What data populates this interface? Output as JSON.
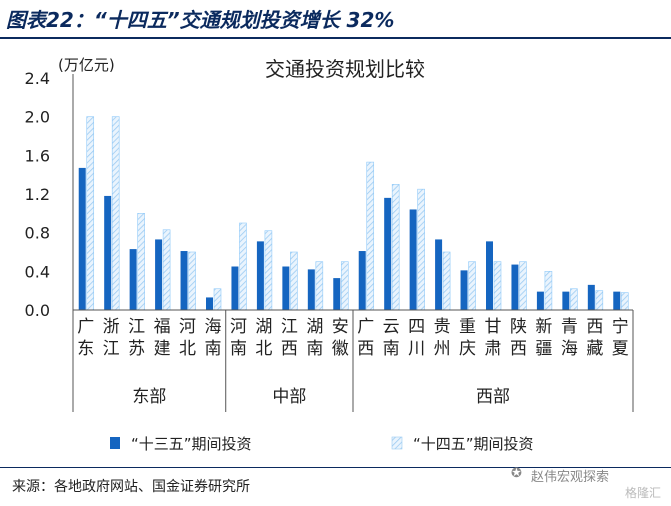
{
  "figure_title": "图表22：“十四五”交通规划投资增长 32%",
  "source": "来源：各地政府网站、国金证券研究所",
  "watermark": {
    "line1": "赵伟宏观探索",
    "line2": "格隆汇"
  },
  "colors": {
    "s13": "#1565c0",
    "s14_stroke": "#90caf9",
    "s14_fill": "#e3f2fd",
    "axis": "#555555",
    "brand": "#0b2a5e"
  },
  "chart_data": {
    "type": "bar",
    "title": "交通投资规划比较",
    "ylabel": "(万亿元)",
    "ylim": [
      0,
      2.4
    ],
    "yticks": [
      "0.0",
      "0.4",
      "0.8",
      "1.2",
      "1.6",
      "2.0",
      "2.4"
    ],
    "categories": [
      "广东",
      "浙江",
      "江苏",
      "福建",
      "河北",
      "海南",
      "河南",
      "湖北",
      "江西",
      "湖南",
      "安徽",
      "广西",
      "云南",
      "四川",
      "贵州",
      "重庆",
      "甘肃",
      "陕西",
      "新疆",
      "青海",
      "西藏",
      "宁夏"
    ],
    "groups": [
      {
        "name": "东部",
        "count": 6
      },
      {
        "name": "中部",
        "count": 5
      },
      {
        "name": "西部",
        "count": 11
      }
    ],
    "series": [
      {
        "name": "“十三五”期间投资",
        "values": [
          1.47,
          1.18,
          0.63,
          0.73,
          0.61,
          0.13,
          0.45,
          0.71,
          0.45,
          0.42,
          0.33,
          0.61,
          1.16,
          1.04,
          0.73,
          0.41,
          0.71,
          0.47,
          0.19,
          0.19,
          0.26,
          0.19
        ]
      },
      {
        "name": "“十四五”期间投资",
        "values": [
          2.0,
          2.0,
          1.0,
          0.83,
          0.6,
          0.22,
          0.9,
          0.82,
          0.6,
          0.5,
          0.5,
          1.53,
          1.3,
          1.25,
          0.6,
          0.5,
          0.5,
          0.5,
          0.4,
          0.22,
          0.2,
          0.18
        ]
      }
    ],
    "legend": "bottom"
  }
}
